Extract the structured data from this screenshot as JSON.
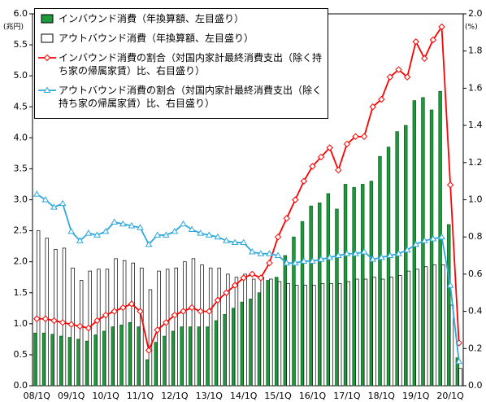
{
  "chart_data": {
    "type": "bar_line",
    "y_unit": "(兆円)",
    "y2_unit": "(%)",
    "categories": [
      "08/1Q",
      null,
      null,
      null,
      "09/1Q",
      null,
      null,
      null,
      "10/1Q",
      null,
      null,
      null,
      "11/1Q",
      null,
      null,
      null,
      "12/1Q",
      null,
      null,
      null,
      "13/1Q",
      null,
      null,
      null,
      "14/1Q",
      null,
      null,
      null,
      "15/1Q",
      null,
      null,
      null,
      "16/1Q",
      null,
      null,
      null,
      "17/1Q",
      null,
      null,
      null,
      "18/1Q",
      null,
      null,
      null,
      "19/1Q",
      null,
      null,
      null,
      "20/1Q",
      null
    ],
    "ylim": [
      0,
      6
    ],
    "yticks": [
      {
        "value": 0,
        "label": "0.0"
      },
      0.5,
      {
        "value": 1,
        "label": "1.0"
      },
      1.5,
      {
        "value": 2,
        "label": "2.0"
      },
      2.5,
      {
        "value": 3,
        "label": "3.0"
      },
      3.5,
      {
        "value": 4,
        "label": "4.0"
      },
      4.5,
      {
        "value": 5,
        "label": "5.0"
      },
      5.5,
      {
        "value": 6,
        "label": "6.0"
      }
    ],
    "y2lim": [
      0,
      2
    ],
    "y2ticks": [
      {
        "value": 0,
        "label": "0.0"
      },
      0.2,
      0.4,
      0.6,
      0.8,
      {
        "value": 1,
        "label": "1.0"
      },
      1.2,
      1.4,
      1.6,
      1.8,
      {
        "value": 2,
        "label": "2.0"
      }
    ],
    "series": [
      {
        "name": "インバウンド消費（年換算額、左目盛り）",
        "type": "bar",
        "color": "#1e9a3c",
        "values": [
          0.85,
          0.85,
          0.83,
          0.8,
          0.78,
          0.75,
          0.72,
          0.82,
          0.88,
          0.95,
          0.98,
          1.02,
          0.95,
          0.42,
          0.7,
          0.8,
          0.88,
          0.95,
          0.95,
          0.95,
          0.95,
          1.05,
          1.15,
          1.25,
          1.35,
          1.4,
          1.5,
          1.7,
          1.75,
          2.1,
          2.4,
          2.65,
          2.9,
          2.95,
          3.1,
          2.85,
          3.25,
          3.2,
          3.25,
          3.3,
          3.7,
          3.85,
          4.1,
          4.2,
          4.6,
          4.65,
          4.45,
          4.75,
          2.6,
          0.45
        ]
      },
      {
        "name": "アウトバウンド消費（年換算額、左目盛り）",
        "type": "bar",
        "color": "#ffffff",
        "values": [
          2.5,
          2.38,
          2.2,
          2.22,
          1.9,
          1.7,
          1.85,
          1.88,
          1.88,
          2.05,
          2.02,
          1.98,
          1.9,
          1.55,
          1.85,
          1.88,
          1.9,
          2.0,
          2.05,
          1.95,
          1.9,
          1.9,
          1.8,
          1.75,
          1.8,
          1.72,
          1.75,
          1.72,
          1.68,
          1.65,
          1.62,
          1.62,
          1.62,
          1.65,
          1.65,
          1.65,
          1.68,
          1.72,
          1.72,
          1.75,
          1.72,
          1.75,
          1.78,
          1.85,
          1.88,
          1.92,
          1.95,
          1.95,
          1.3,
          0.28
        ]
      },
      {
        "name": "インバウンド消費の割合（対国内家計最終消費支出（除く持ち家の帰属家賃）比、右目盛り）",
        "type": "line",
        "marker": "diamond",
        "axis": "y2",
        "color": "#ff0000",
        "values": [
          0.36,
          0.36,
          0.35,
          0.34,
          0.33,
          0.32,
          0.31,
          0.35,
          0.38,
          0.4,
          0.42,
          0.44,
          0.4,
          0.19,
          0.3,
          0.34,
          0.38,
          0.4,
          0.42,
          0.4,
          0.4,
          0.46,
          0.5,
          0.54,
          0.58,
          0.6,
          0.58,
          0.66,
          0.8,
          0.9,
          1.0,
          1.1,
          1.18,
          1.23,
          1.28,
          1.16,
          1.3,
          1.34,
          1.34,
          1.5,
          1.54,
          1.66,
          1.7,
          1.66,
          1.85,
          1.76,
          1.86,
          1.93,
          1.08,
          0.23
        ]
      },
      {
        "name": "アウトバウンド消費の割合（対国内家計最終消費支出（除く持ち家の帰属家賃）比、右目盛り）",
        "type": "line",
        "marker": "triangle",
        "axis": "y2",
        "color": "#2fa8dc",
        "values": [
          1.03,
          1.0,
          0.96,
          0.98,
          0.83,
          0.78,
          0.82,
          0.81,
          0.83,
          0.88,
          0.87,
          0.86,
          0.85,
          0.76,
          0.81,
          0.81,
          0.83,
          0.87,
          0.84,
          0.82,
          0.81,
          0.8,
          0.78,
          0.77,
          0.77,
          0.72,
          0.71,
          0.71,
          0.7,
          0.66,
          0.66,
          0.67,
          0.67,
          0.68,
          0.69,
          0.7,
          0.71,
          0.71,
          0.72,
          0.68,
          0.69,
          0.7,
          0.71,
          0.73,
          0.76,
          0.78,
          0.79,
          0.8,
          0.54,
          0.13
        ]
      }
    ]
  }
}
